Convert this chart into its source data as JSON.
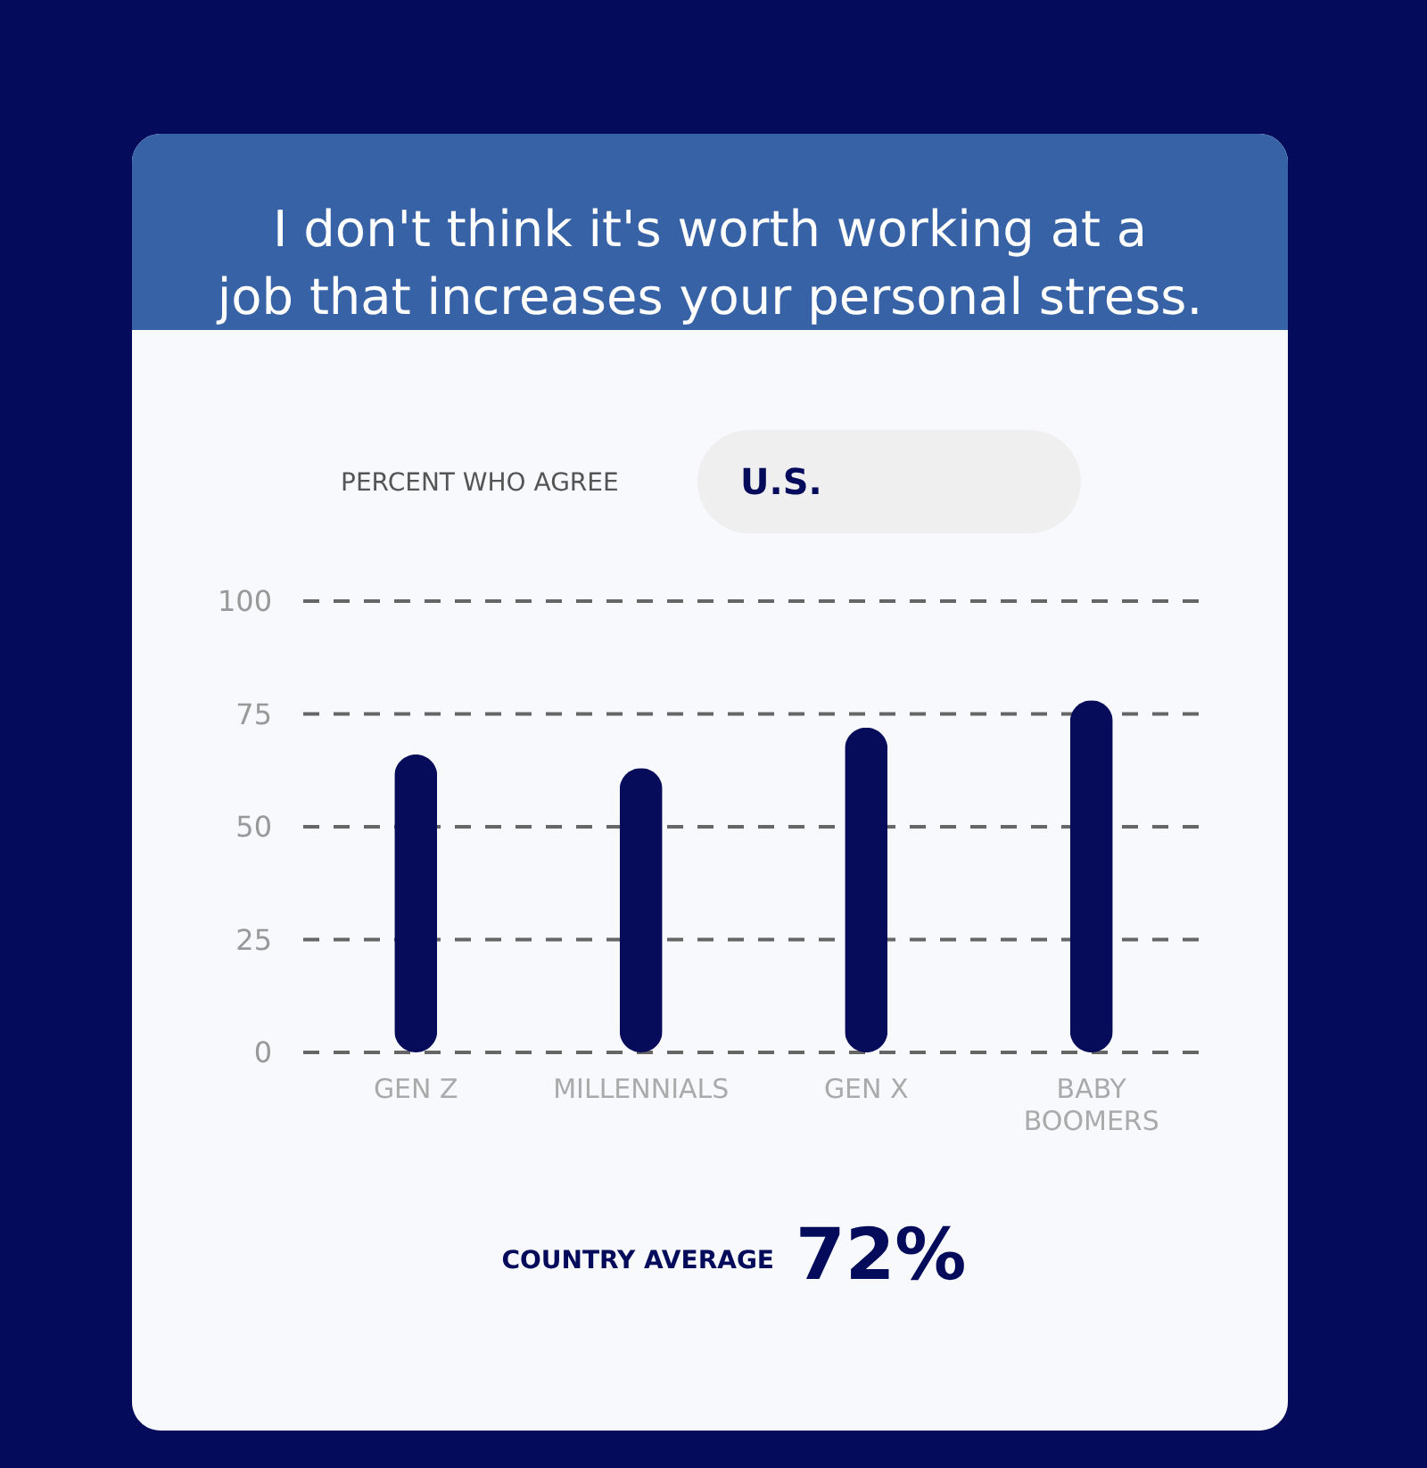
{
  "chart_data": {
    "type": "bar",
    "title": "I don't think it's worth working at a job that increases your personal stress.",
    "ylabel": "PERCENT WHO AGREE",
    "categories": [
      "GEN Z",
      "MILLENNIALS",
      "GEN X",
      "BABY BOOMERS"
    ],
    "values": [
      66,
      63,
      72,
      78
    ],
    "color": "#060b5a",
    "ylim": [
      0,
      100
    ],
    "yticks": [
      0,
      25,
      50,
      75,
      100
    ],
    "grid": "y",
    "annotations": [
      "U.S.",
      "COUNTRY AVERAGE",
      "72%"
    ]
  }
}
